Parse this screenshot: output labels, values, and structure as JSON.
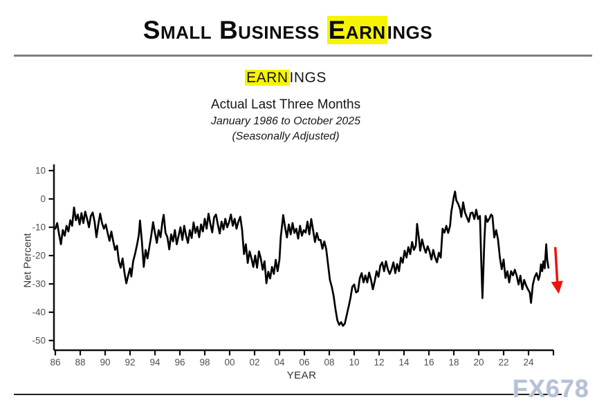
{
  "header": {
    "title_pre": "Small Business ",
    "title_hl": "Earn",
    "title_post": "ings"
  },
  "subtitle": {
    "word_hl": "EARN",
    "word_post": "INGS",
    "line1": "Actual Last Three Months",
    "line2": "January 1986 to October 2025",
    "line3": "(Seasonally Adjusted)"
  },
  "watermark": "FX678",
  "colors": {
    "highlight": "#f7f400",
    "arrow": "#eb130b",
    "line": "#000000",
    "axis": "#0d0d0d",
    "tick_label": "#4f4f4f",
    "watermark": "#b6c1d4"
  },
  "chart_data": {
    "type": "line",
    "series_name": "Earnings, Actual Last Three Months (Net Percent, Seasonally Adjusted)",
    "xlabel": "YEAR",
    "ylabel": "Net Percent",
    "x_tick_labels": [
      "86",
      "88",
      "90",
      "92",
      "94",
      "96",
      "98",
      "00",
      "02",
      "04",
      "06",
      "08",
      "10",
      "12",
      "14",
      "16",
      "18",
      "20",
      "22",
      "24"
    ],
    "y_ticks": [
      10,
      0,
      -10,
      -20,
      -30,
      -40,
      -50
    ],
    "ylim": [
      -50,
      10
    ],
    "x_start_year": 1986,
    "x_end_year": 2025.83,
    "grid": false,
    "legend": "none",
    "annotation": {
      "type": "down-arrow",
      "t": 40.15,
      "value_from": -17,
      "value_to": -33.5
    },
    "points": [
      [
        0,
        -10.5
      ],
      [
        0.15,
        -8.5
      ],
      [
        0.3,
        -12.5
      ],
      [
        0.45,
        -16
      ],
      [
        0.6,
        -11
      ],
      [
        0.75,
        -13
      ],
      [
        0.9,
        -9.5
      ],
      [
        1.05,
        -11.5
      ],
      [
        1.2,
        -7.5
      ],
      [
        1.35,
        -9.5
      ],
      [
        1.5,
        -3
      ],
      [
        1.65,
        -7.5
      ],
      [
        1.8,
        -5.5
      ],
      [
        1.95,
        -9
      ],
      [
        2.1,
        -5
      ],
      [
        2.25,
        -8.5
      ],
      [
        2.4,
        -4.5
      ],
      [
        2.55,
        -7
      ],
      [
        2.7,
        -10
      ],
      [
        2.85,
        -6
      ],
      [
        3,
        -4.8
      ],
      [
        3.15,
        -8
      ],
      [
        3.3,
        -13.5
      ],
      [
        3.45,
        -9
      ],
      [
        3.6,
        -5.2
      ],
      [
        3.75,
        -8.5
      ],
      [
        3.9,
        -10.5
      ],
      [
        4.05,
        -9
      ],
      [
        4.2,
        -12
      ],
      [
        4.35,
        -14.8
      ],
      [
        4.5,
        -11.5
      ],
      [
        4.65,
        -15
      ],
      [
        4.8,
        -18
      ],
      [
        4.95,
        -16.5
      ],
      [
        5.1,
        -21.9
      ],
      [
        5.25,
        -24.3
      ],
      [
        5.4,
        -21
      ],
      [
        5.55,
        -26
      ],
      [
        5.7,
        -29.8
      ],
      [
        5.85,
        -27
      ],
      [
        6,
        -24.5
      ],
      [
        6.1,
        -27.4
      ],
      [
        6.25,
        -22
      ],
      [
        6.4,
        -19.5
      ],
      [
        6.55,
        -16.4
      ],
      [
        6.7,
        -12.9
      ],
      [
        6.8,
        -7.6
      ],
      [
        6.95,
        -15
      ],
      [
        7.1,
        -24
      ],
      [
        7.25,
        -18
      ],
      [
        7.4,
        -21
      ],
      [
        7.55,
        -17
      ],
      [
        7.7,
        -13
      ],
      [
        7.85,
        -8.2
      ],
      [
        8,
        -12
      ],
      [
        8.15,
        -15.5
      ],
      [
        8.3,
        -11
      ],
      [
        8.45,
        -13.5
      ],
      [
        8.6,
        -8
      ],
      [
        8.7,
        -5.6
      ],
      [
        8.85,
        -12
      ],
      [
        9,
        -13.5
      ],
      [
        9.15,
        -17.8
      ],
      [
        9.3,
        -12.5
      ],
      [
        9.45,
        -15
      ],
      [
        9.6,
        -11
      ],
      [
        9.75,
        -16
      ],
      [
        9.9,
        -13
      ],
      [
        10.05,
        -10
      ],
      [
        10.2,
        -14.5
      ],
      [
        10.35,
        -9.5
      ],
      [
        10.5,
        -13
      ],
      [
        10.65,
        -15.5
      ],
      [
        10.8,
        -11
      ],
      [
        10.95,
        -13.8
      ],
      [
        11.1,
        -8.3
      ],
      [
        11.25,
        -12
      ],
      [
        11.4,
        -9.8
      ],
      [
        11.55,
        -13.5
      ],
      [
        11.7,
        -9
      ],
      [
        11.85,
        -11.5
      ],
      [
        12,
        -7
      ],
      [
        12.15,
        -10.5
      ],
      [
        12.3,
        -5.2
      ],
      [
        12.45,
        -8.8
      ],
      [
        12.6,
        -11.8
      ],
      [
        12.75,
        -6.5
      ],
      [
        12.9,
        -5.5
      ],
      [
        13.05,
        -9
      ],
      [
        13.2,
        -12.2
      ],
      [
        13.35,
        -8
      ],
      [
        13.5,
        -10.8
      ],
      [
        13.65,
        -7
      ],
      [
        13.8,
        -10
      ],
      [
        13.95,
        -8.2
      ],
      [
        14.1,
        -5.5
      ],
      [
        14.25,
        -9.5
      ],
      [
        14.4,
        -7
      ],
      [
        14.55,
        -10.5
      ],
      [
        14.7,
        -8
      ],
      [
        14.85,
        -6.3
      ],
      [
        15,
        -11
      ],
      [
        15.15,
        -19.5
      ],
      [
        15.3,
        -16
      ],
      [
        15.45,
        -22.6
      ],
      [
        15.6,
        -18.5
      ],
      [
        15.75,
        -21
      ],
      [
        15.9,
        -24
      ],
      [
        16.05,
        -20
      ],
      [
        16.2,
        -24.3
      ],
      [
        16.35,
        -18.5
      ],
      [
        16.5,
        -21
      ],
      [
        16.65,
        -25
      ],
      [
        16.8,
        -22
      ],
      [
        16.95,
        -29.8
      ],
      [
        17.1,
        -25.7
      ],
      [
        17.25,
        -28.1
      ],
      [
        17.4,
        -24
      ],
      [
        17.55,
        -26.5
      ],
      [
        17.7,
        -21.5
      ],
      [
        17.85,
        -25.5
      ],
      [
        18,
        -21.4
      ],
      [
        18.1,
        -13.6
      ],
      [
        18.3,
        -5.7
      ],
      [
        18.45,
        -10
      ],
      [
        18.6,
        -13.6
      ],
      [
        18.75,
        -9
      ],
      [
        18.9,
        -12.5
      ],
      [
        19.05,
        -8.5
      ],
      [
        19.2,
        -12
      ],
      [
        19.35,
        -10.5
      ],
      [
        19.5,
        -14
      ],
      [
        19.65,
        -9.5
      ],
      [
        19.8,
        -13
      ],
      [
        19.95,
        -11
      ],
      [
        20.1,
        -11.9
      ],
      [
        20.25,
        -8
      ],
      [
        20.4,
        -12.5
      ],
      [
        20.55,
        -7.1
      ],
      [
        20.7,
        -11
      ],
      [
        20.85,
        -15.2
      ],
      [
        21,
        -12
      ],
      [
        21.15,
        -14.5
      ],
      [
        21.3,
        -14.5
      ],
      [
        21.45,
        -17.6
      ],
      [
        21.6,
        -15
      ],
      [
        21.75,
        -17.6
      ],
      [
        21.9,
        -23.1
      ],
      [
        22.05,
        -28.6
      ],
      [
        22.2,
        -31
      ],
      [
        22.35,
        -34.3
      ],
      [
        22.5,
        -39
      ],
      [
        22.65,
        -42.9
      ],
      [
        22.8,
        -44.5
      ],
      [
        22.95,
        -43.5
      ],
      [
        23.1,
        -44.8
      ],
      [
        23.25,
        -44
      ],
      [
        23.4,
        -41
      ],
      [
        23.55,
        -38.1
      ],
      [
        23.7,
        -35
      ],
      [
        23.85,
        -31
      ],
      [
        24,
        -30.2
      ],
      [
        24.15,
        -33
      ],
      [
        24.3,
        -32.6
      ],
      [
        24.45,
        -28
      ],
      [
        24.6,
        -26.2
      ],
      [
        24.75,
        -29.5
      ],
      [
        24.9,
        -27
      ],
      [
        25.05,
        -29.5
      ],
      [
        25.2,
        -26
      ],
      [
        25.35,
        -28.5
      ],
      [
        25.5,
        -31.9
      ],
      [
        25.65,
        -29
      ],
      [
        25.8,
        -25.5
      ],
      [
        25.95,
        -27.5
      ],
      [
        26.1,
        -23.5
      ],
      [
        26.25,
        -22.4
      ],
      [
        26.4,
        -25.5
      ],
      [
        26.55,
        -22
      ],
      [
        26.7,
        -24.8
      ],
      [
        26.85,
        -26.5
      ],
      [
        27,
        -24.8
      ],
      [
        27.15,
        -22.4
      ],
      [
        27.3,
        -26.2
      ],
      [
        27.45,
        -23
      ],
      [
        27.6,
        -25.5
      ],
      [
        27.75,
        -20.7
      ],
      [
        27.9,
        -22.5
      ],
      [
        28.05,
        -18.3
      ],
      [
        28.2,
        -20.7
      ],
      [
        28.35,
        -17
      ],
      [
        28.5,
        -19.5
      ],
      [
        28.65,
        -15.2
      ],
      [
        28.8,
        -18
      ],
      [
        28.95,
        -16.5
      ],
      [
        29.05,
        -8.8
      ],
      [
        29.2,
        -14
      ],
      [
        29.3,
        -18.3
      ],
      [
        29.45,
        -14.3
      ],
      [
        29.6,
        -17
      ],
      [
        29.75,
        -19
      ],
      [
        29.9,
        -16.7
      ],
      [
        30.05,
        -18.5
      ],
      [
        30.2,
        -21.4
      ],
      [
        30.35,
        -18
      ],
      [
        30.5,
        -20.7
      ],
      [
        30.65,
        -22.4
      ],
      [
        30.8,
        -19
      ],
      [
        30.95,
        -20.7
      ],
      [
        31.1,
        -10.5
      ],
      [
        31.25,
        -11.9
      ],
      [
        31.4,
        -9.5
      ],
      [
        31.55,
        -12
      ],
      [
        31.7,
        -9.5
      ],
      [
        31.8,
        -4.5
      ],
      [
        31.9,
        -2
      ],
      [
        32,
        0.7
      ],
      [
        32.1,
        2.6
      ],
      [
        32.2,
        -0.5
      ],
      [
        32.35,
        -1.7
      ],
      [
        32.5,
        -3.5
      ],
      [
        32.6,
        -6.4
      ],
      [
        32.75,
        -1.2
      ],
      [
        32.9,
        -4.8
      ],
      [
        33.05,
        -6.5
      ],
      [
        33.2,
        -8.1
      ],
      [
        33.35,
        -5
      ],
      [
        33.5,
        -4.8
      ],
      [
        33.65,
        -7.1
      ],
      [
        33.8,
        -3.8
      ],
      [
        33.95,
        -7.1
      ],
      [
        34.1,
        -6
      ],
      [
        34.2,
        -21.4
      ],
      [
        34.3,
        -35
      ],
      [
        34.45,
        -15.2
      ],
      [
        34.55,
        -6
      ],
      [
        34.7,
        -8.1
      ],
      [
        34.85,
        -7
      ],
      [
        35,
        -5.5
      ],
      [
        35.1,
        -6
      ],
      [
        35.25,
        -13.6
      ],
      [
        35.4,
        -11
      ],
      [
        35.55,
        -14.3
      ],
      [
        35.7,
        -20.7
      ],
      [
        35.85,
        -24.8
      ],
      [
        36,
        -21.4
      ],
      [
        36.15,
        -27.9
      ],
      [
        36.3,
        -25.5
      ],
      [
        36.45,
        -29.5
      ],
      [
        36.6,
        -25.5
      ],
      [
        36.75,
        -27
      ],
      [
        36.9,
        -25
      ],
      [
        37.05,
        -27.1
      ],
      [
        37.2,
        -30.2
      ],
      [
        37.35,
        -27.1
      ],
      [
        37.5,
        -31.9
      ],
      [
        37.65,
        -28.6
      ],
      [
        37.8,
        -30.5
      ],
      [
        37.95,
        -31.9
      ],
      [
        38.1,
        -33
      ],
      [
        38.2,
        -36.7
      ],
      [
        38.35,
        -30.2
      ],
      [
        38.5,
        -27.5
      ],
      [
        38.65,
        -26.2
      ],
      [
        38.8,
        -28.6
      ],
      [
        38.9,
        -27
      ],
      [
        39,
        -23.1
      ],
      [
        39.1,
        -25.5
      ],
      [
        39.2,
        -22
      ],
      [
        39.3,
        -24.5
      ],
      [
        39.42,
        -16
      ],
      [
        39.5,
        -21.4
      ],
      [
        39.6,
        -24.3
      ]
    ]
  }
}
